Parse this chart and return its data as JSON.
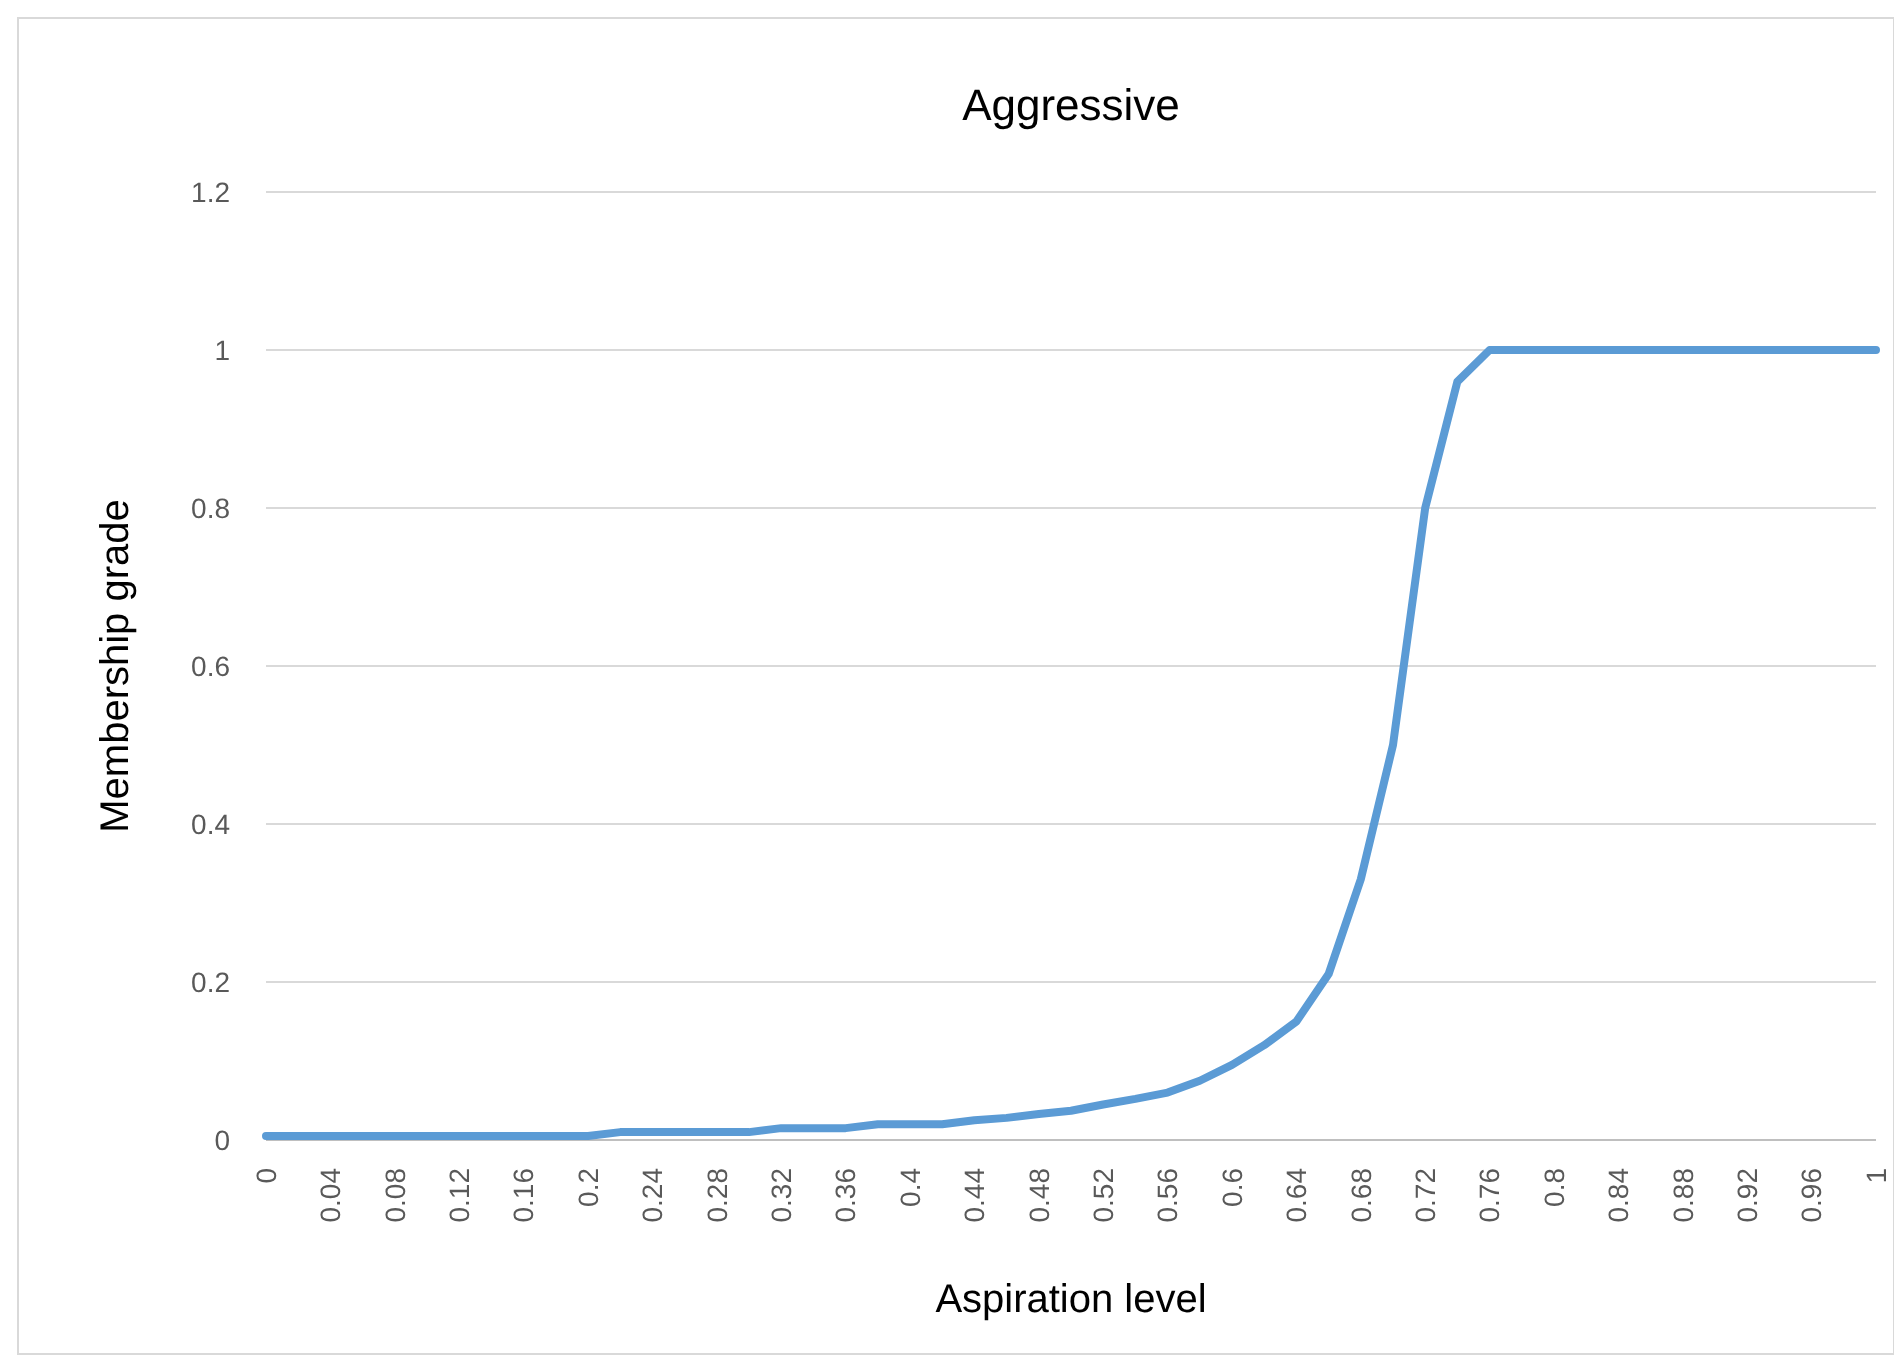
{
  "chart_data": {
    "type": "line",
    "title": "Aggressive",
    "xlabel": "Aspiration level",
    "ylabel": "Membership grade",
    "x": [
      0,
      0.02,
      0.04,
      0.06,
      0.08,
      0.1,
      0.12,
      0.14,
      0.16,
      0.18,
      0.2,
      0.22,
      0.24,
      0.26,
      0.28,
      0.3,
      0.32,
      0.34,
      0.36,
      0.38,
      0.4,
      0.42,
      0.44,
      0.46,
      0.48,
      0.5,
      0.52,
      0.54,
      0.56,
      0.58,
      0.6,
      0.62,
      0.64,
      0.66,
      0.68,
      0.7,
      0.72,
      0.74,
      0.76,
      0.78,
      0.8,
      0.82,
      0.84,
      0.86,
      0.88,
      0.9,
      0.92,
      0.94,
      0.96,
      0.98,
      1
    ],
    "series": [
      {
        "color": "#5b9bd5",
        "values": [
          0.005,
          0.005,
          0.005,
          0.005,
          0.005,
          0.005,
          0.005,
          0.005,
          0.005,
          0.005,
          0.005,
          0.01,
          0.01,
          0.01,
          0.01,
          0.01,
          0.015,
          0.015,
          0.015,
          0.02,
          0.02,
          0.02,
          0.025,
          0.028,
          0.033,
          0.037,
          0.045,
          0.052,
          0.06,
          0.075,
          0.095,
          0.12,
          0.15,
          0.21,
          0.33,
          0.5,
          0.8,
          0.96,
          1,
          1,
          1,
          1,
          1,
          1,
          1,
          1,
          1,
          1,
          1,
          1,
          1
        ]
      }
    ],
    "xlim": [
      0,
      1
    ],
    "xticks": [
      0,
      0.04,
      0.08,
      0.12,
      0.16,
      0.2,
      0.24,
      0.28,
      0.32,
      0.36,
      0.4,
      0.44,
      0.48,
      0.52,
      0.56,
      0.6,
      0.64,
      0.68,
      0.72,
      0.76,
      0.8,
      0.84,
      0.88,
      0.92,
      0.96,
      1
    ],
    "ylim": [
      0,
      1.2
    ],
    "yticks": [
      0,
      0.2,
      0.4,
      0.6,
      0.8,
      1,
      1.2
    ],
    "grid": "y",
    "line_style": "solid",
    "marker": "none"
  }
}
